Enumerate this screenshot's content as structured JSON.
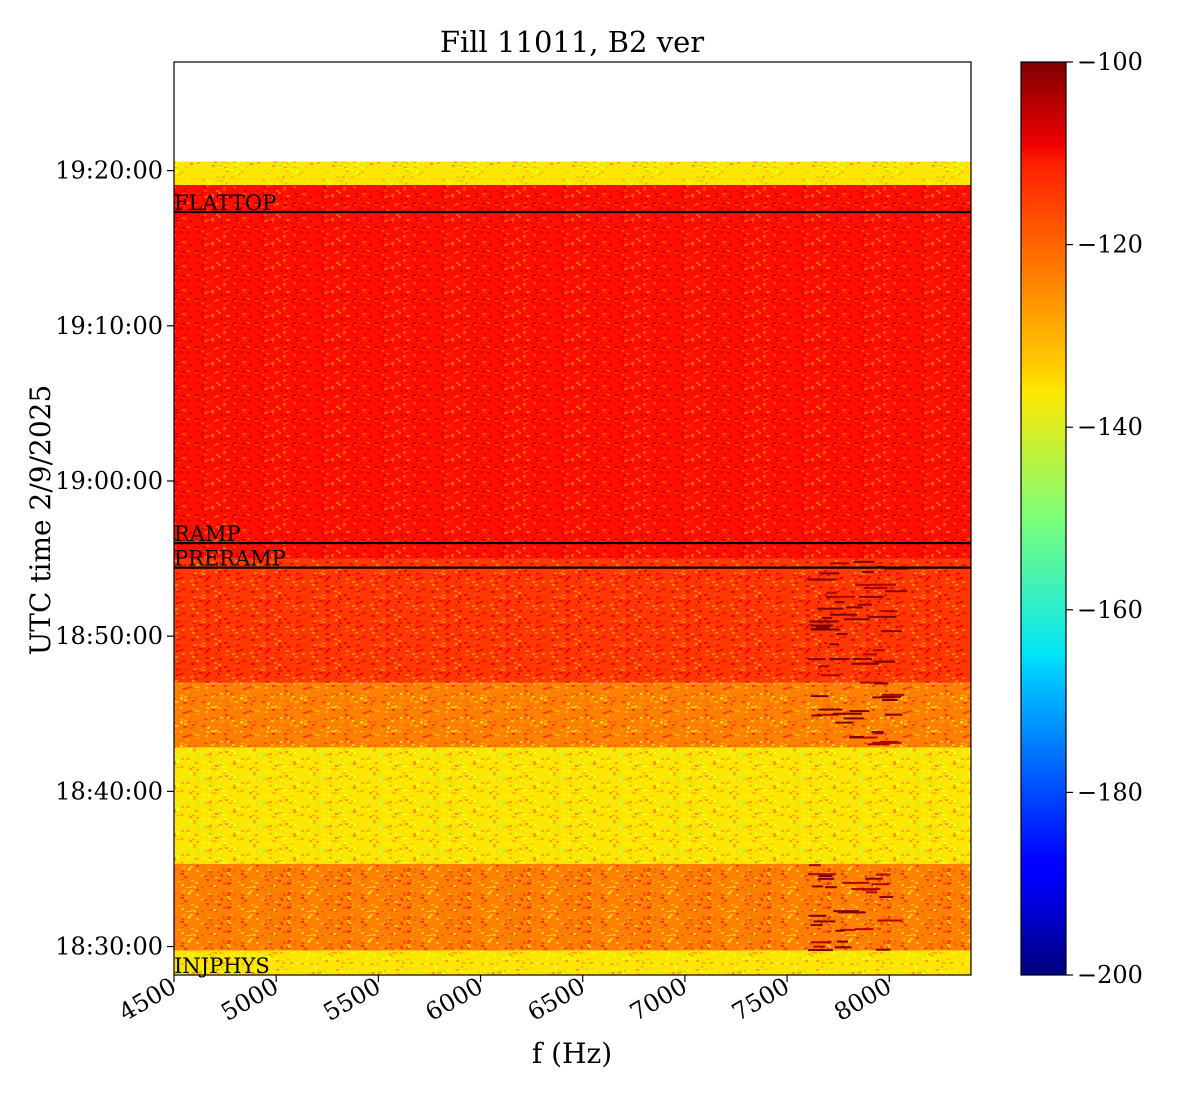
{
  "chart_data": {
    "type": "heatmap",
    "title": "Fill 11011, B2 ver",
    "xlabel": "f (Hz)",
    "ylabel": "UTC time 2/9/2025",
    "xlim": [
      4500,
      8400
    ],
    "x_ticks": [
      4500,
      5000,
      5500,
      6000,
      6500,
      7000,
      7500,
      8000
    ],
    "x_tick_labels": [
      "4500",
      "5000",
      "5500",
      "6000",
      "6500",
      "7000",
      "7500",
      "8000"
    ],
    "ylim": [
      "18:28:10",
      "19:27:00"
    ],
    "y_ticks": [
      "18:30:00",
      "18:40:00",
      "18:50:00",
      "19:00:00",
      "19:10:00",
      "19:20:00"
    ],
    "y_tick_labels": [
      "18:30:00",
      "18:40:00",
      "18:50:00",
      "19:00:00",
      "19:10:00",
      "19:20:00"
    ],
    "data_time_range": [
      "18:28:10",
      "19:20:35"
    ],
    "colormap": "jet",
    "colorbar": {
      "min": -200,
      "max": -100,
      "ticks": [
        -100,
        -120,
        -140,
        -160,
        -180,
        -200
      ],
      "tick_labels": [
        "−100",
        "−120",
        "−140",
        "−160",
        "−180",
        "−200"
      ]
    },
    "bands": [
      {
        "start": "18:28:10",
        "end": "18:29:45",
        "level_db": -135
      },
      {
        "start": "18:29:45",
        "end": "18:35:20",
        "level_db": -125
      },
      {
        "start": "18:35:20",
        "end": "18:42:50",
        "level_db": -135
      },
      {
        "start": "18:42:50",
        "end": "18:47:00",
        "level_db": -125
      },
      {
        "start": "18:47:00",
        "end": "18:55:00",
        "level_db": -118
      },
      {
        "start": "18:55:00",
        "end": "19:19:05",
        "level_db": -114
      },
      {
        "start": "19:19:05",
        "end": "19:20:35",
        "level_db": -135
      }
    ],
    "hot_spots": [
      {
        "f_from": 7600,
        "f_to": 8050,
        "start": "18:29:45",
        "end": "18:35:20"
      },
      {
        "f_from": 7600,
        "f_to": 8050,
        "start": "18:42:50",
        "end": "18:55:00"
      }
    ],
    "markers": [
      {
        "label": "INJPHYS",
        "time": "18:28:10"
      },
      {
        "label": "PRERAMP",
        "time": "18:54:25"
      },
      {
        "label": "RAMP",
        "time": "18:56:00"
      },
      {
        "label": "FLATTOP",
        "time": "19:17:20"
      }
    ],
    "colors": {
      "marker_line": "#000000",
      "background": "#ffffff"
    }
  }
}
